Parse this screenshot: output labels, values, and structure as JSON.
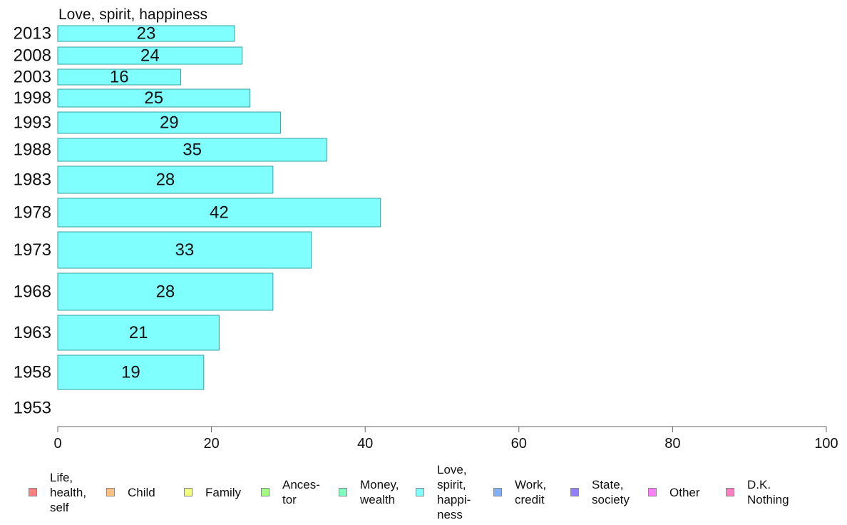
{
  "chart_data": {
    "type": "bar",
    "orientation": "horizontal",
    "title": "Love, spirit, happiness",
    "categories": [
      "2013",
      "2008",
      "2003",
      "1998",
      "1993",
      "1988",
      "1983",
      "1978",
      "1973",
      "1968",
      "1963",
      "1958",
      "1953"
    ],
    "series": [
      {
        "name": "Love, spirit, happiness",
        "values": [
          23,
          24,
          16,
          25,
          29,
          35,
          28,
          42,
          33,
          28,
          21,
          19,
          null
        ],
        "color": "#80ffff"
      }
    ],
    "xlim": [
      0,
      100
    ],
    "xticks": [
      0,
      20,
      40,
      60,
      80,
      100
    ],
    "grid": false,
    "legend_placement": "bottom"
  },
  "legend": [
    {
      "label": "Life, health, self",
      "color": "#ff8080",
      "lines": [
        "Life,",
        "health,",
        "self"
      ]
    },
    {
      "label": "Child",
      "color": "#ffc080",
      "lines": [
        "Child"
      ]
    },
    {
      "label": "Family",
      "color": "#f0ff80",
      "lines": [
        "Family"
      ]
    },
    {
      "label": "Ances-tor",
      "color": "#a0ff80",
      "lines": [
        "Ances-",
        "tor"
      ]
    },
    {
      "label": "Money, wealth",
      "color": "#80ffc0",
      "lines": [
        "Money,",
        "wealth"
      ]
    },
    {
      "label": "Love, spirit, happi-ness",
      "color": "#80ffff",
      "lines": [
        "Love,",
        "spirit,",
        "happi-",
        "ness"
      ]
    },
    {
      "label": "Work, credit",
      "color": "#80b0ff",
      "lines": [
        "Work,",
        "credit"
      ]
    },
    {
      "label": "State, society",
      "color": "#9080ff",
      "lines": [
        "State,",
        "society"
      ]
    },
    {
      "label": "Other",
      "color": "#ff80ff",
      "lines": [
        "Other"
      ]
    },
    {
      "label": "D.K. Nothing",
      "color": "#ff80c0",
      "lines": [
        "D.K.",
        "Nothing"
      ]
    }
  ]
}
